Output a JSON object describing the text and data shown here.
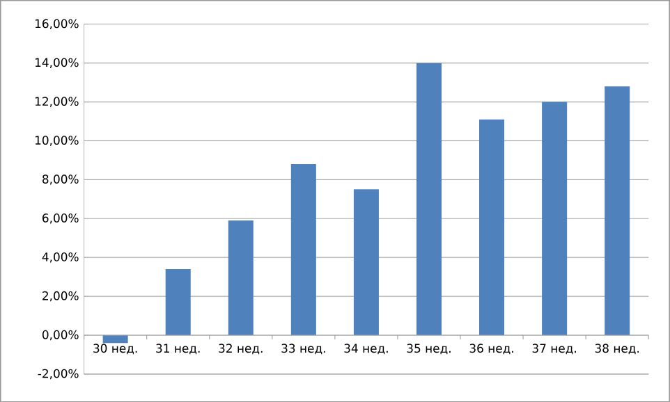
{
  "chart_data": {
    "type": "bar",
    "categories": [
      "30 нед.",
      "31 нед.",
      "32 нед.",
      "33 нед.",
      "34 нед.",
      "35 нед.",
      "36 нед.",
      "37 нед.",
      "38 нед."
    ],
    "values": [
      -0.4,
      3.4,
      5.9,
      8.8,
      7.5,
      14.0,
      11.1,
      12.0,
      12.8
    ],
    "color": "#4f81bd",
    "ylim": [
      -2,
      16
    ],
    "yticks": [
      {
        "value": -2,
        "label": "-2,00%"
      },
      {
        "value": 0,
        "label": "0,00%"
      },
      {
        "value": 2,
        "label": "2,00%"
      },
      {
        "value": 4,
        "label": "4,00%"
      },
      {
        "value": 6,
        "label": "6,00%"
      },
      {
        "value": 8,
        "label": "8,00%"
      },
      {
        "value": 10,
        "label": "10,00%"
      },
      {
        "value": 12,
        "label": "12,00%"
      },
      {
        "value": 14,
        "label": "14,00%"
      },
      {
        "value": 16,
        "label": "16,00%"
      }
    ],
    "grid": "y"
  }
}
